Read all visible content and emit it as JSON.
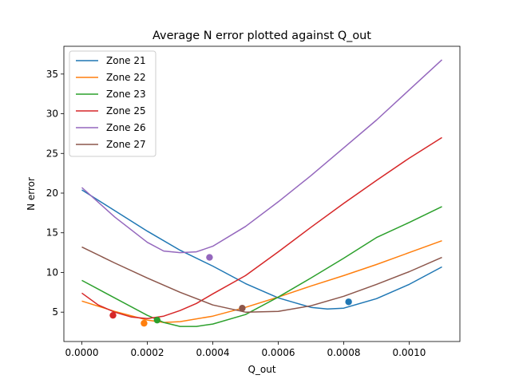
{
  "chart_data": {
    "type": "line",
    "title": "Average N error plotted against Q_out",
    "xlabel": "Q_out",
    "ylabel": "N error",
    "xlim": [
      -5.5e-05,
      0.001155
    ],
    "ylim": [
      1.3,
      38.5
    ],
    "x_ticks": [
      0.0,
      0.0002,
      0.0004,
      0.0006,
      0.0008,
      0.001
    ],
    "x_tick_labels": [
      "0.0000",
      "0.0002",
      "0.0004",
      "0.0006",
      "0.0008",
      "0.0010"
    ],
    "y_ticks": [
      5,
      10,
      15,
      20,
      25,
      30,
      35
    ],
    "y_tick_labels": [
      "5",
      "10",
      "15",
      "20",
      "25",
      "30",
      "35"
    ],
    "grid": false,
    "legend": "top-left",
    "series": [
      {
        "name": "Zone 21",
        "color": "#1f77b4",
        "x": [
          0.0,
          0.0001,
          0.0002,
          0.0003,
          0.0004,
          0.0005,
          0.0006,
          0.00065,
          0.0007,
          0.00075,
          0.0008,
          0.0009,
          0.001,
          0.0011
        ],
        "y": [
          20.4,
          17.8,
          15.2,
          12.8,
          10.8,
          8.6,
          6.8,
          6.2,
          5.6,
          5.4,
          5.5,
          6.7,
          8.5,
          10.7
        ],
        "marker": {
          "x": 0.000815,
          "y": 6.3
        }
      },
      {
        "name": "Zone 22",
        "color": "#ff7f0e",
        "x": [
          0.0,
          0.0001,
          0.0002,
          0.00025,
          0.0003,
          0.0004,
          0.0005,
          0.0006,
          0.0007,
          0.0008,
          0.0009,
          0.001,
          0.0011
        ],
        "y": [
          6.4,
          5.1,
          4.0,
          3.7,
          3.8,
          4.5,
          5.6,
          6.9,
          8.3,
          9.6,
          11.0,
          12.5,
          14.0
        ],
        "marker": {
          "x": 0.00019,
          "y": 3.6
        }
      },
      {
        "name": "Zone 23",
        "color": "#2ca02c",
        "x": [
          0.0,
          0.0001,
          0.0002,
          0.00025,
          0.0003,
          0.00035,
          0.0004,
          0.0005,
          0.0006,
          0.0007,
          0.0008,
          0.0009,
          0.001,
          0.0011
        ],
        "y": [
          9.0,
          6.8,
          4.6,
          3.7,
          3.2,
          3.2,
          3.5,
          4.7,
          6.9,
          9.3,
          11.8,
          14.4,
          16.3,
          18.3
        ],
        "marker": {
          "x": 0.00023,
          "y": 4.0
        }
      },
      {
        "name": "Zone 25",
        "color": "#d62728",
        "x": [
          0.0,
          5e-05,
          0.0001,
          0.00015,
          0.0002,
          0.00025,
          0.0003,
          0.00035,
          0.0004,
          0.0005,
          0.0006,
          0.0007,
          0.0008,
          0.0009,
          0.001,
          0.0011
        ],
        "y": [
          7.4,
          5.9,
          5.0,
          4.4,
          4.2,
          4.5,
          5.2,
          6.1,
          7.3,
          9.6,
          12.6,
          15.7,
          18.7,
          21.6,
          24.4,
          27.0
        ],
        "marker": {
          "x": 9.5e-05,
          "y": 4.6
        }
      },
      {
        "name": "Zone 26",
        "color": "#9467bd",
        "x": [
          0.0,
          0.0001,
          0.0002,
          0.00025,
          0.0003,
          0.00035,
          0.0004,
          0.0005,
          0.0006,
          0.0007,
          0.0008,
          0.0009,
          0.001,
          0.0011
        ],
        "y": [
          20.7,
          17.0,
          13.8,
          12.7,
          12.5,
          12.6,
          13.3,
          15.8,
          18.9,
          22.2,
          25.7,
          29.2,
          33.0,
          36.8
        ],
        "marker": {
          "x": 0.00039,
          "y": 11.9
        }
      },
      {
        "name": "Zone 27",
        "color": "#8c564b",
        "x": [
          0.0,
          0.0001,
          0.0002,
          0.0003,
          0.0004,
          0.0005,
          0.0006,
          0.0007,
          0.0008,
          0.0009,
          0.001,
          0.0011
        ],
        "y": [
          13.2,
          11.2,
          9.3,
          7.5,
          5.9,
          5.0,
          5.1,
          5.8,
          7.0,
          8.5,
          10.1,
          11.9
        ],
        "marker": {
          "x": 0.00049,
          "y": 5.5
        }
      }
    ]
  }
}
